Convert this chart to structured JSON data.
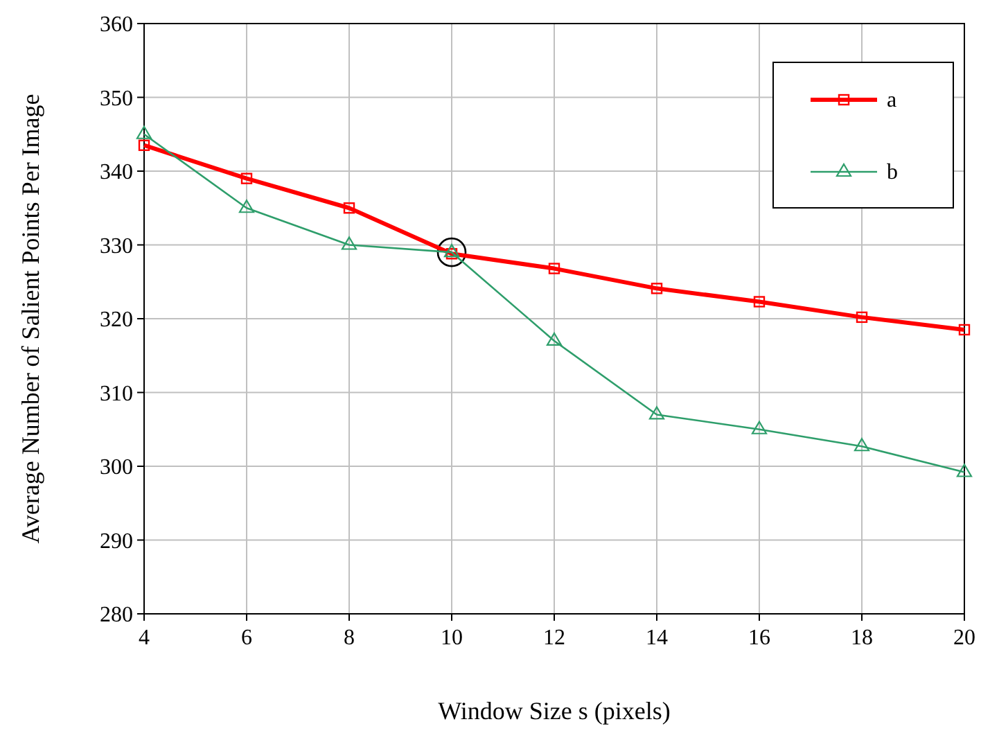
{
  "chart_data": {
    "type": "line",
    "xlabel": "Window Size s (pixels)",
    "ylabel": "Average Number of Salient Points Per Image",
    "x": [
      4,
      6,
      8,
      10,
      12,
      14,
      16,
      18,
      20
    ],
    "series": [
      {
        "name": "a",
        "color": "#ff0000",
        "marker": "square",
        "values": [
          343.5,
          339.0,
          335.0,
          328.8,
          326.8,
          324.1,
          322.3,
          320.2,
          318.5
        ]
      },
      {
        "name": "b",
        "color": "#2e9e6b",
        "marker": "triangle",
        "values": [
          345.0,
          335.0,
          330.0,
          329.0,
          317.0,
          307.0,
          305.0,
          302.7,
          299.2
        ]
      }
    ],
    "xlim": [
      4,
      20
    ],
    "xticks": [
      4,
      6,
      8,
      10,
      12,
      14,
      16,
      18,
      20
    ],
    "ylim": [
      280,
      360
    ],
    "yticks": [
      280,
      290,
      300,
      310,
      320,
      330,
      340,
      350,
      360
    ],
    "grid": true,
    "legend": "top right",
    "line_style": "solid"
  }
}
